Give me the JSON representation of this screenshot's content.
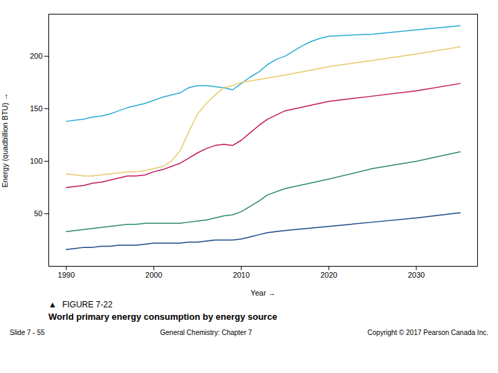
{
  "chart_data": {
    "type": "line",
    "title": "World primary energy consumption by energy source",
    "annotations": [
      "▲",
      "FIGURE 7-22",
      "Slide 7 - 55",
      "General Chemistry: Chapter 7",
      "Copyright © 2017 Pearson Canada Inc."
    ],
    "xlabel": "Year",
    "ylabel": "Energy (quadbillion BTU)",
    "xlim": [
      1988,
      2037
    ],
    "ylim": [
      0,
      240
    ],
    "xticks": [
      1990,
      2000,
      2010,
      2020,
      2030
    ],
    "yticks": [
      50,
      100,
      150,
      200
    ],
    "grid": false,
    "series": [
      {
        "color": "#29ABD4",
        "x": [
          1990,
          1991,
          1992,
          1993,
          1994,
          1995,
          1996,
          1997,
          1998,
          1999,
          2000,
          2001,
          2002,
          2003,
          2004,
          2005,
          2006,
          2007,
          2008,
          2009,
          2010,
          2011,
          2012,
          2013,
          2014,
          2015,
          2016,
          2017,
          2018,
          2019,
          2020,
          2025,
          2030,
          2035
        ],
        "values": [
          138,
          139,
          140,
          142,
          143,
          145,
          148,
          151,
          153,
          155,
          158,
          161,
          163,
          165,
          170,
          172,
          172,
          171,
          170,
          168,
          174,
          180,
          185,
          192,
          197,
          200,
          205,
          210,
          214,
          217,
          219,
          221,
          225,
          229
        ]
      },
      {
        "color": "#E8C96A",
        "x": [
          1990,
          1991,
          1992,
          1993,
          1994,
          1995,
          1996,
          1997,
          1998,
          1999,
          2000,
          2001,
          2002,
          2003,
          2004,
          2005,
          2006,
          2007,
          2008,
          2009,
          2010,
          2015,
          2020,
          2025,
          2030,
          2035
        ],
        "values": [
          88,
          87,
          86,
          86,
          87,
          88,
          89,
          90,
          90,
          91,
          93,
          95,
          100,
          110,
          128,
          145,
          155,
          163,
          170,
          172,
          175,
          182,
          190,
          196,
          202,
          209
        ]
      },
      {
        "color": "#C2185B",
        "x": [
          1990,
          1991,
          1992,
          1993,
          1994,
          1995,
          1996,
          1997,
          1998,
          1999,
          2000,
          2001,
          2002,
          2003,
          2004,
          2005,
          2006,
          2007,
          2008,
          2009,
          2010,
          2011,
          2012,
          2013,
          2015,
          2020,
          2025,
          2030,
          2035
        ],
        "values": [
          75,
          76,
          77,
          79,
          80,
          82,
          84,
          86,
          86,
          87,
          90,
          92,
          95,
          98,
          103,
          108,
          112,
          115,
          116,
          115,
          120,
          127,
          134,
          140,
          148,
          157,
          162,
          167,
          174
        ]
      },
      {
        "color": "#2E8B6A",
        "x": [
          1990,
          1991,
          1992,
          1993,
          1994,
          1995,
          1996,
          1997,
          1998,
          1999,
          2000,
          2001,
          2002,
          2003,
          2004,
          2005,
          2006,
          2007,
          2008,
          2009,
          2010,
          2011,
          2012,
          2013,
          2015,
          2020,
          2025,
          2030,
          2035
        ],
        "values": [
          33,
          34,
          35,
          36,
          37,
          38,
          39,
          40,
          40,
          41,
          41,
          41,
          41,
          41,
          42,
          43,
          44,
          46,
          48,
          49,
          52,
          57,
          62,
          68,
          74,
          83,
          93,
          100,
          109
        ]
      },
      {
        "color": "#1A4A8A",
        "x": [
          1990,
          1991,
          1992,
          1993,
          1994,
          1995,
          1996,
          1997,
          1998,
          1999,
          2000,
          2001,
          2002,
          2003,
          2004,
          2005,
          2006,
          2007,
          2008,
          2009,
          2010,
          2011,
          2012,
          2013,
          2015,
          2020,
          2025,
          2030,
          2035
        ],
        "values": [
          16,
          17,
          18,
          18,
          19,
          19,
          20,
          20,
          20,
          21,
          22,
          22,
          22,
          22,
          23,
          23,
          24,
          25,
          25,
          25,
          26,
          28,
          30,
          32,
          34,
          38,
          42,
          46,
          51
        ]
      }
    ]
  }
}
